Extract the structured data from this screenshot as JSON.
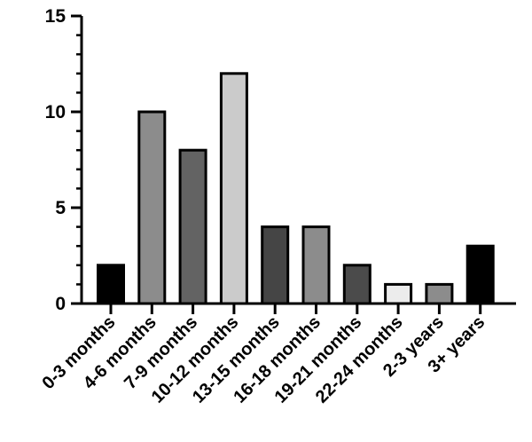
{
  "chart_data": {
    "type": "bar",
    "title": "",
    "xlabel": "",
    "ylabel": "",
    "ylim": [
      0,
      15
    ],
    "yticks": [
      0,
      5,
      10,
      15
    ],
    "y_minor_step": 1,
    "grid": false,
    "categories": [
      "0-3 months",
      "4-6 months",
      "7-9 months",
      "10-12 months",
      "13-15 months",
      "16-18 months",
      "19-21 months",
      "22-24 months",
      "2-3 years",
      "3+ years"
    ],
    "values": [
      2,
      10,
      8,
      12,
      4,
      4,
      2,
      1,
      1,
      3
    ],
    "colors": [
      "#000000",
      "#8c8c8c",
      "#636363",
      "#cbcbcb",
      "#454545",
      "#8c8c8c",
      "#4b4b4b",
      "#ececec",
      "#8c8c8c",
      "#000000"
    ]
  }
}
